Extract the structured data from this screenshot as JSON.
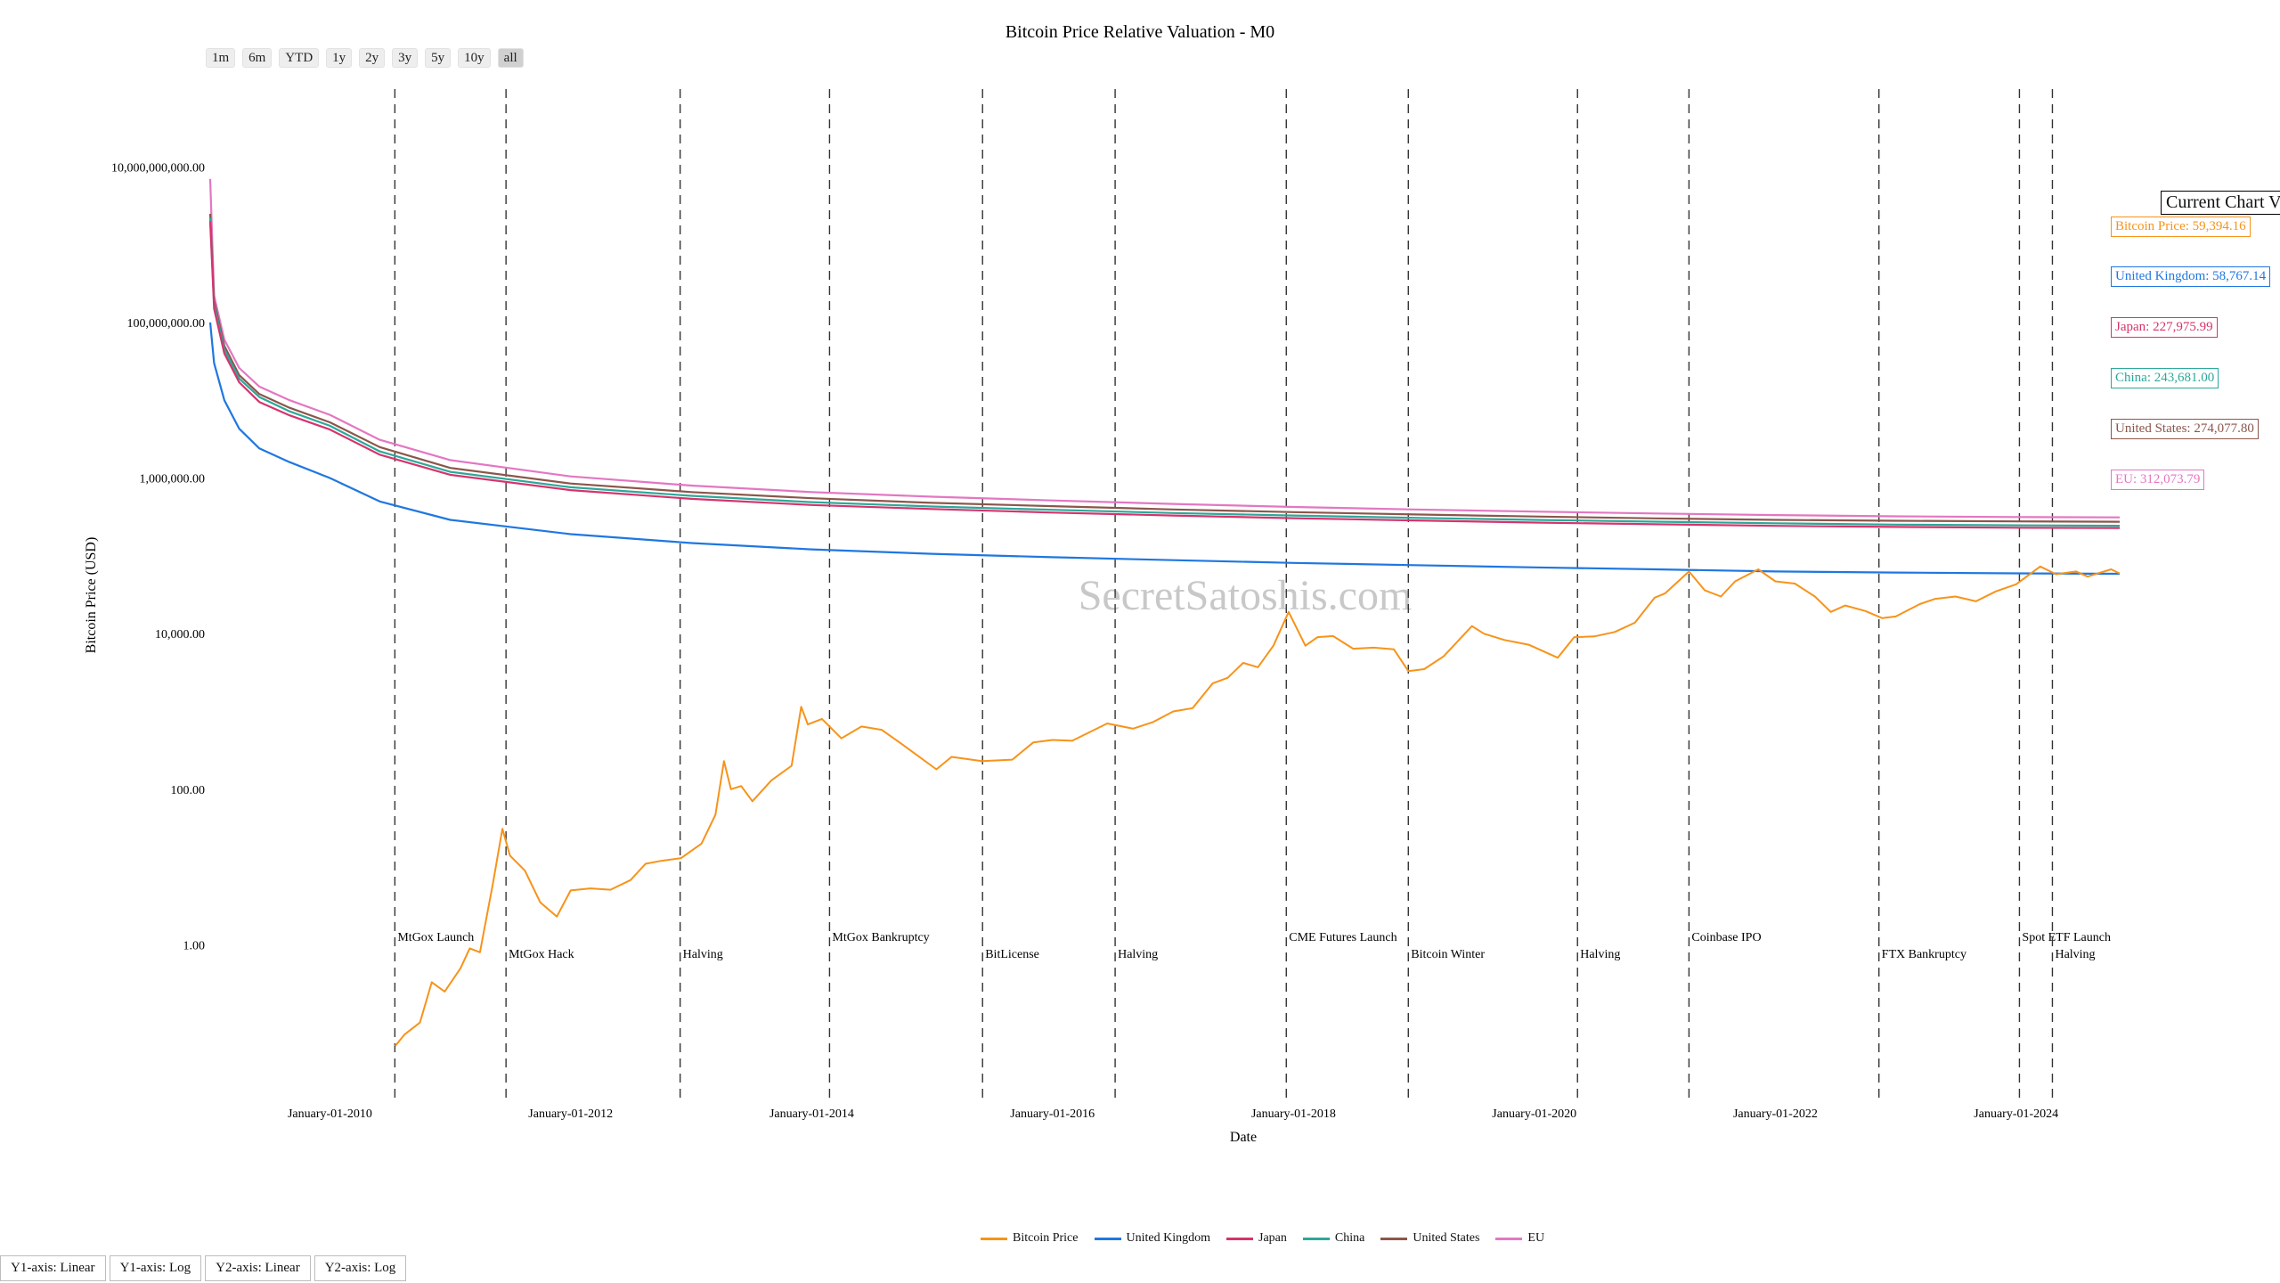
{
  "range_buttons": [
    "1m",
    "6m",
    "YTD",
    "1y",
    "2y",
    "3y",
    "5y",
    "10y",
    "all"
  ],
  "active_range": "all",
  "axis_toggles": [
    "Y1-axis: Linear",
    "Y1-axis: Log",
    "Y2-axis: Linear",
    "Y2-axis: Log"
  ],
  "watermark": "SecretSatoshis.com",
  "current_values": {
    "title": "Current Chart Values",
    "items": [
      {
        "text": "Bitcoin Price: 59,394.16",
        "color": "#f7931a"
      },
      {
        "text": "United Kingdom: 58,767.14",
        "color": "#1f77e0"
      },
      {
        "text": "Japan: 227,975.99",
        "color": "#d6336c"
      },
      {
        "text": "China: 243,681.00",
        "color": "#2ca89a"
      },
      {
        "text": "United States: 274,077.80",
        "color": "#8c564b"
      },
      {
        "text": "EU: 312,073.79",
        "color": "#e377c2"
      }
    ]
  },
  "chart_data": {
    "type": "line",
    "title": "Bitcoin Price Relative Valuation - M0",
    "xlabel": "Date",
    "ylabel": "Bitcoin Price (USD)",
    "y_scale": "log",
    "ylim": [
      0.01,
      100000000000
    ],
    "xlim": [
      "2009-01-03",
      "2024-11-10"
    ],
    "y_tick_labels": [
      "10,000,000,000.00",
      "100,000,000.00",
      "1,000,000.00",
      "10,000.00",
      "100.00",
      "1.00"
    ],
    "y_tick_values": [
      10000000000,
      100000000,
      1000000,
      10000,
      100,
      1
    ],
    "x_tick_labels": [
      "January-01-2010",
      "January-01-2012",
      "January-01-2014",
      "January-01-2016",
      "January-01-2018",
      "January-01-2020",
      "January-01-2022",
      "January-01-2024"
    ],
    "x_tick_values": [
      "2010-01-01",
      "2012-01-01",
      "2014-01-01",
      "2016-01-01",
      "2018-01-01",
      "2020-01-01",
      "2022-01-01",
      "2024-01-01"
    ],
    "grid": false,
    "legend_position": "bottom-center",
    "events": [
      {
        "date": "2010-07-17",
        "label": "MtGox Launch",
        "row": 0
      },
      {
        "date": "2011-06-19",
        "label": "MtGox Hack",
        "row": 1
      },
      {
        "date": "2012-11-28",
        "label": "Halving",
        "row": 1
      },
      {
        "date": "2014-02-24",
        "label": "MtGox Bankruptcy",
        "row": 0
      },
      {
        "date": "2015-06-03",
        "label": "BitLicense",
        "row": 1
      },
      {
        "date": "2016-07-09",
        "label": "Halving",
        "row": 1
      },
      {
        "date": "2017-12-10",
        "label": "CME Futures Launch",
        "row": 0
      },
      {
        "date": "2018-12-15",
        "label": "Bitcoin Winter",
        "row": 1
      },
      {
        "date": "2020-05-11",
        "label": "Halving",
        "row": 1
      },
      {
        "date": "2021-04-14",
        "label": "Coinbase IPO",
        "row": 0
      },
      {
        "date": "2022-11-11",
        "label": "FTX Bankruptcy",
        "row": 1
      },
      {
        "date": "2024-01-11",
        "label": "Spot ETF Launch",
        "row": 0
      },
      {
        "date": "2024-04-20",
        "label": "Halving",
        "row": 1
      }
    ],
    "series": [
      {
        "name": "Bitcoin Price",
        "color": "#f7931a",
        "x": [
          "2010-07-18",
          "2010-08-15",
          "2010-10-01",
          "2010-11-06",
          "2010-12-15",
          "2011-02-01",
          "2011-03-01",
          "2011-04-01",
          "2011-05-10",
          "2011-06-08",
          "2011-07-01",
          "2011-08-15",
          "2011-10-01",
          "2011-11-20",
          "2012-01-01",
          "2012-03-01",
          "2012-05-01",
          "2012-07-01",
          "2012-08-15",
          "2012-10-01",
          "2012-12-01",
          "2013-02-01",
          "2013-03-15",
          "2013-04-10",
          "2013-05-01",
          "2013-06-01",
          "2013-07-05",
          "2013-09-01",
          "2013-11-01",
          "2013-11-30",
          "2013-12-20",
          "2014-02-01",
          "2014-04-01",
          "2014-06-01",
          "2014-08-01",
          "2014-10-01",
          "2015-01-14",
          "2015-03-01",
          "2015-06-01",
          "2015-09-01",
          "2015-11-04",
          "2016-01-01",
          "2016-03-01",
          "2016-06-15",
          "2016-09-01",
          "2016-11-01",
          "2017-01-01",
          "2017-03-01",
          "2017-05-01",
          "2017-06-15",
          "2017-08-01",
          "2017-09-15",
          "2017-11-01",
          "2017-12-17",
          "2018-02-06",
          "2018-03-15",
          "2018-05-01",
          "2018-07-01",
          "2018-09-01",
          "2018-11-01",
          "2018-12-15",
          "2019-02-01",
          "2019-04-01",
          "2019-06-26",
          "2019-08-01",
          "2019-10-01",
          "2019-12-15",
          "2020-03-12",
          "2020-05-01",
          "2020-07-01",
          "2020-09-01",
          "2020-11-01",
          "2020-12-31",
          "2021-02-01",
          "2021-04-14",
          "2021-06-01",
          "2021-07-20",
          "2021-09-01",
          "2021-11-10",
          "2022-01-01",
          "2022-03-01",
          "2022-05-01",
          "2022-06-18",
          "2022-08-01",
          "2022-10-01",
          "2022-11-21",
          "2023-01-01",
          "2023-03-15",
          "2023-05-01",
          "2023-07-01",
          "2023-09-01",
          "2023-11-01",
          "2024-01-01",
          "2024-03-14",
          "2024-05-01",
          "2024-07-01",
          "2024-08-05",
          "2024-09-01",
          "2024-10-15",
          "2024-11-10"
        ],
        "y": [
          0.05,
          0.07,
          0.1,
          0.33,
          0.25,
          0.5,
          0.9,
          0.8,
          6,
          31,
          14,
          9,
          3.5,
          2.3,
          5,
          5.3,
          5.1,
          6.8,
          11,
          12,
          13,
          20,
          47,
          230,
          100,
          110,
          70,
          130,
          200,
          1150,
          680,
          800,
          450,
          640,
          580,
          380,
          180,
          260,
          230,
          240,
          400,
          430,
          420,
          700,
          600,
          730,
          1000,
          1100,
          2300,
          2700,
          4200,
          3700,
          7000,
          19000,
          7000,
          9000,
          9300,
          6400,
          6600,
          6300,
          3300,
          3500,
          5100,
          12500,
          10000,
          8300,
          7200,
          4900,
          9000,
          9200,
          10500,
          13800,
          29000,
          33000,
          63000,
          36000,
          30000,
          47000,
          67000,
          47000,
          44000,
          30000,
          19000,
          23000,
          19500,
          15800,
          16600,
          24000,
          28000,
          30000,
          26000,
          35000,
          43000,
          73000,
          58000,
          63000,
          54000,
          59000,
          67000,
          59394
        ]
      },
      {
        "name": "United Kingdom",
        "color": "#1f77e0",
        "x": [
          "2009-01-03",
          "2009-01-15",
          "2009-02-15",
          "2009-04-01",
          "2009-06-01",
          "2009-09-01",
          "2010-01-01",
          "2010-06-01",
          "2011-01-01",
          "2012-01-01",
          "2013-01-01",
          "2014-01-01",
          "2015-01-01",
          "2016-01-01",
          "2017-01-01",
          "2018-01-01",
          "2019-01-01",
          "2020-01-01",
          "2021-01-01",
          "2022-01-01",
          "2023-01-01",
          "2024-01-01",
          "2024-11-10"
        ],
        "y": [
          100000000,
          30000000,
          10000000,
          4300000,
          2400000,
          1600000,
          1000000,
          500000,
          290000,
          190000,
          146000,
          121000,
          106000,
          96000,
          88000,
          81000,
          76000,
          71000,
          67000,
          63000,
          61000,
          59500,
          58767
        ]
      },
      {
        "name": "Japan",
        "color": "#d6336c",
        "x": [
          "2009-01-03",
          "2009-01-15",
          "2009-02-15",
          "2009-04-01",
          "2009-06-01",
          "2009-09-01",
          "2010-01-01",
          "2010-06-01",
          "2011-01-01",
          "2012-01-01",
          "2013-01-01",
          "2014-01-01",
          "2015-01-01",
          "2016-01-01",
          "2017-01-01",
          "2018-01-01",
          "2019-01-01",
          "2020-01-01",
          "2021-01-01",
          "2022-01-01",
          "2023-01-01",
          "2024-01-01",
          "2024-11-10"
        ],
        "y": [
          2000000000,
          150000000,
          40000000,
          17000000,
          9500000,
          6400000,
          4200000,
          2000000,
          1100000,
          700000,
          540000,
          450000,
          400000,
          360000,
          330000,
          305000,
          285000,
          268000,
          255000,
          243000,
          235000,
          230000,
          227976
        ]
      },
      {
        "name": "China",
        "color": "#2ca89a",
        "x": [
          "2009-01-03",
          "2009-01-15",
          "2009-02-15",
          "2009-04-01",
          "2009-06-01",
          "2009-09-01",
          "2010-01-01",
          "2010-06-01",
          "2011-01-01",
          "2012-01-01",
          "2013-01-01",
          "2014-01-01",
          "2015-01-01",
          "2016-01-01",
          "2017-01-01",
          "2018-01-01",
          "2019-01-01",
          "2020-01-01",
          "2021-01-01",
          "2022-01-01",
          "2023-01-01",
          "2024-01-01",
          "2024-11-10"
        ],
        "y": [
          2200000000,
          170000000,
          45000000,
          19000000,
          11000000,
          7200000,
          4700000,
          2200000,
          1200000,
          760000,
          590000,
          490000,
          430000,
          390000,
          355000,
          330000,
          308000,
          290000,
          275000,
          262000,
          252000,
          247000,
          243681
        ]
      },
      {
        "name": "United States",
        "color": "#8c564b",
        "x": [
          "2009-01-03",
          "2009-01-15",
          "2009-02-15",
          "2009-04-01",
          "2009-06-01",
          "2009-09-01",
          "2010-01-01",
          "2010-06-01",
          "2011-01-01",
          "2012-01-01",
          "2013-01-01",
          "2014-01-01",
          "2015-01-01",
          "2016-01-01",
          "2017-01-01",
          "2018-01-01",
          "2019-01-01",
          "2020-01-01",
          "2021-01-01",
          "2022-01-01",
          "2023-01-01",
          "2024-01-01",
          "2024-11-10"
        ],
        "y": [
          2500000000,
          190000000,
          50000000,
          21000000,
          12000000,
          8000000,
          5200000,
          2500000,
          1350000,
          850000,
          660000,
          550000,
          480000,
          435000,
          395000,
          365000,
          340000,
          320000,
          303000,
          290000,
          282000,
          277000,
          274078
        ]
      },
      {
        "name": "EU",
        "color": "#e377c2",
        "x": [
          "2009-01-03",
          "2009-01-15",
          "2009-02-15",
          "2009-04-01",
          "2009-06-01",
          "2009-09-01",
          "2010-01-01",
          "2010-06-01",
          "2011-01-01",
          "2012-01-01",
          "2013-01-01",
          "2014-01-01",
          "2015-01-01",
          "2016-01-01",
          "2017-01-01",
          "2018-01-01",
          "2019-01-01",
          "2020-01-01",
          "2021-01-01",
          "2022-01-01",
          "2023-01-01",
          "2024-01-01",
          "2024-11-10"
        ],
        "y": [
          7000000000,
          220000000,
          60000000,
          26000000,
          15000000,
          10000000,
          6500000,
          3100000,
          1700000,
          1050000,
          800000,
          660000,
          575000,
          515000,
          465000,
          425000,
          395000,
          370000,
          350000,
          334000,
          322000,
          315000,
          312074
        ]
      }
    ]
  }
}
